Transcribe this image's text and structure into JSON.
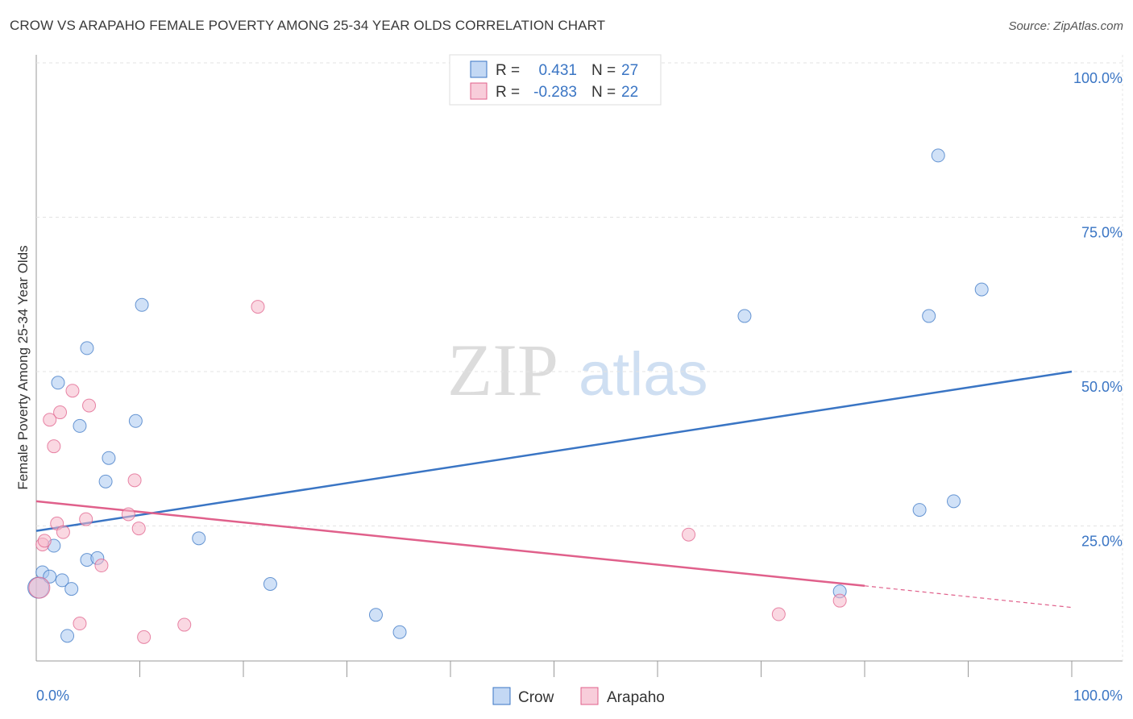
{
  "header": {
    "title": "CROW VS ARAPAHO FEMALE POVERTY AMONG 25-34 YEAR OLDS CORRELATION CHART",
    "source": "Source: ZipAtlas.com"
  },
  "legend_top": {
    "rows": [
      {
        "r_label": "R =",
        "r_value": "0.431",
        "n_label": "N =",
        "n_value": "27",
        "color": "#a9c8f0"
      },
      {
        "r_label": "R =",
        "r_value": "-0.283",
        "n_label": "N =",
        "n_value": "22",
        "color": "#f5b8cb"
      }
    ]
  },
  "legend_bottom": {
    "items": [
      {
        "label": "Crow",
        "color": "#a9c8f0"
      },
      {
        "label": "Arapaho",
        "color": "#f5b8cb"
      }
    ]
  },
  "watermark": {
    "zip": "ZIP",
    "atlas": "atlas"
  },
  "chart_data": {
    "type": "scatter",
    "title": "CROW VS ARAPAHO FEMALE POVERTY AMONG 25-34 YEAR OLDS CORRELATION CHART",
    "xlabel": "",
    "ylabel": "Female Poverty Among 25-34 Year Olds",
    "xlim": [
      0,
      100
    ],
    "ylim": [
      0,
      100
    ],
    "x_tick_labels": [
      "0.0%",
      "100.0%"
    ],
    "y_ticks": [
      {
        "value": 25,
        "label": "25.0%"
      },
      {
        "value": 50,
        "label": "50.0%"
      },
      {
        "value": 75,
        "label": "75.0%"
      },
      {
        "value": 100,
        "label": "100.0%"
      }
    ],
    "series": [
      {
        "name": "Crow",
        "color": "#3a75c4",
        "fill": "#a9c8f0",
        "points": [
          [
            0.2,
            15.0
          ],
          [
            0.6,
            17.5
          ],
          [
            1.3,
            16.8
          ],
          [
            1.7,
            21.8
          ],
          [
            2.1,
            48.2
          ],
          [
            2.5,
            16.2
          ],
          [
            3.0,
            7.2
          ],
          [
            3.4,
            14.8
          ],
          [
            4.2,
            41.2
          ],
          [
            4.9,
            19.5
          ],
          [
            4.9,
            53.8
          ],
          [
            5.9,
            19.8
          ],
          [
            7.0,
            36.0
          ],
          [
            6.7,
            32.2
          ],
          [
            9.6,
            42.0
          ],
          [
            10.2,
            60.8
          ],
          [
            15.7,
            23.0
          ],
          [
            22.6,
            15.6
          ],
          [
            32.8,
            10.6
          ],
          [
            35.1,
            7.8
          ],
          [
            68.4,
            59.0
          ],
          [
            77.6,
            14.4
          ],
          [
            85.3,
            27.6
          ],
          [
            86.2,
            59.0
          ],
          [
            87.1,
            85.0
          ],
          [
            88.6,
            29.0
          ],
          [
            91.3,
            63.3
          ]
        ],
        "trend": {
          "x0": 0,
          "y0": 24.2,
          "x1": 100,
          "y1": 50.0
        }
      },
      {
        "name": "Arapaho",
        "color": "#e0608b",
        "fill": "#f5b8cb",
        "points": [
          [
            0.3,
            15.0
          ],
          [
            0.6,
            22.0
          ],
          [
            0.8,
            22.6
          ],
          [
            1.3,
            42.2
          ],
          [
            1.7,
            37.9
          ],
          [
            2.0,
            25.4
          ],
          [
            2.3,
            43.4
          ],
          [
            2.6,
            24.0
          ],
          [
            3.5,
            46.9
          ],
          [
            4.2,
            9.2
          ],
          [
            4.8,
            26.1
          ],
          [
            5.1,
            44.5
          ],
          [
            6.3,
            18.6
          ],
          [
            8.9,
            26.9
          ],
          [
            9.5,
            32.4
          ],
          [
            9.9,
            24.6
          ],
          [
            10.4,
            7.0
          ],
          [
            14.3,
            9.0
          ],
          [
            21.4,
            60.5
          ],
          [
            63.0,
            23.6
          ],
          [
            71.7,
            10.7
          ],
          [
            77.6,
            12.9
          ]
        ],
        "trend": {
          "x0": 0,
          "y0": 29.0,
          "x1": 80,
          "y1": 15.3,
          "dash_to_x": 100,
          "dash_to_y": 11.8
        }
      }
    ]
  }
}
